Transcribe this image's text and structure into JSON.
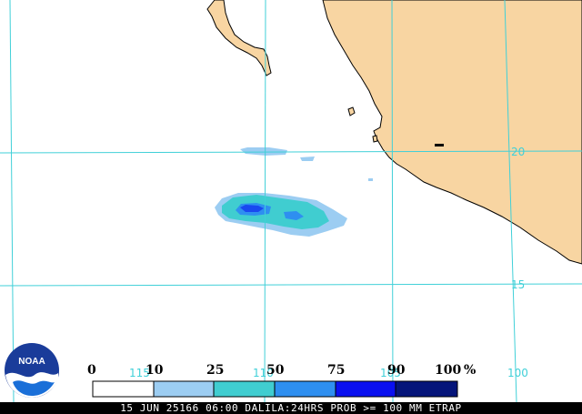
{
  "map": {
    "colors": {
      "land": "#f8d5a2",
      "ocean": "#ffffff",
      "grid": "#40d0d8",
      "coast": "#000000"
    },
    "grid_labels": {
      "lat_20": "20",
      "lat_15": "15",
      "lon_115": "115",
      "lon_110": "110",
      "lon_105": "105",
      "lon_100": "100"
    }
  },
  "legend": {
    "labels": [
      "0",
      "10",
      "25",
      "50",
      "75",
      "90",
      "100"
    ],
    "unit": "%",
    "bins": [
      {
        "range": "0-10",
        "color": "#ffffff"
      },
      {
        "range": "10-25",
        "color": "#9ccdf2"
      },
      {
        "range": "25-50",
        "color": "#40cdd0"
      },
      {
        "range": "50-75",
        "color": "#2e8ff0"
      },
      {
        "range": "75-90",
        "color": "#0a10f0"
      },
      {
        "range": "90-100",
        "color": "#05157a"
      }
    ]
  },
  "logo": {
    "text": "NOAA"
  },
  "footer": {
    "text": "15 JUN 25166 06:00 DALILA:24HRS PROB >= 100 MM ETRAP"
  }
}
